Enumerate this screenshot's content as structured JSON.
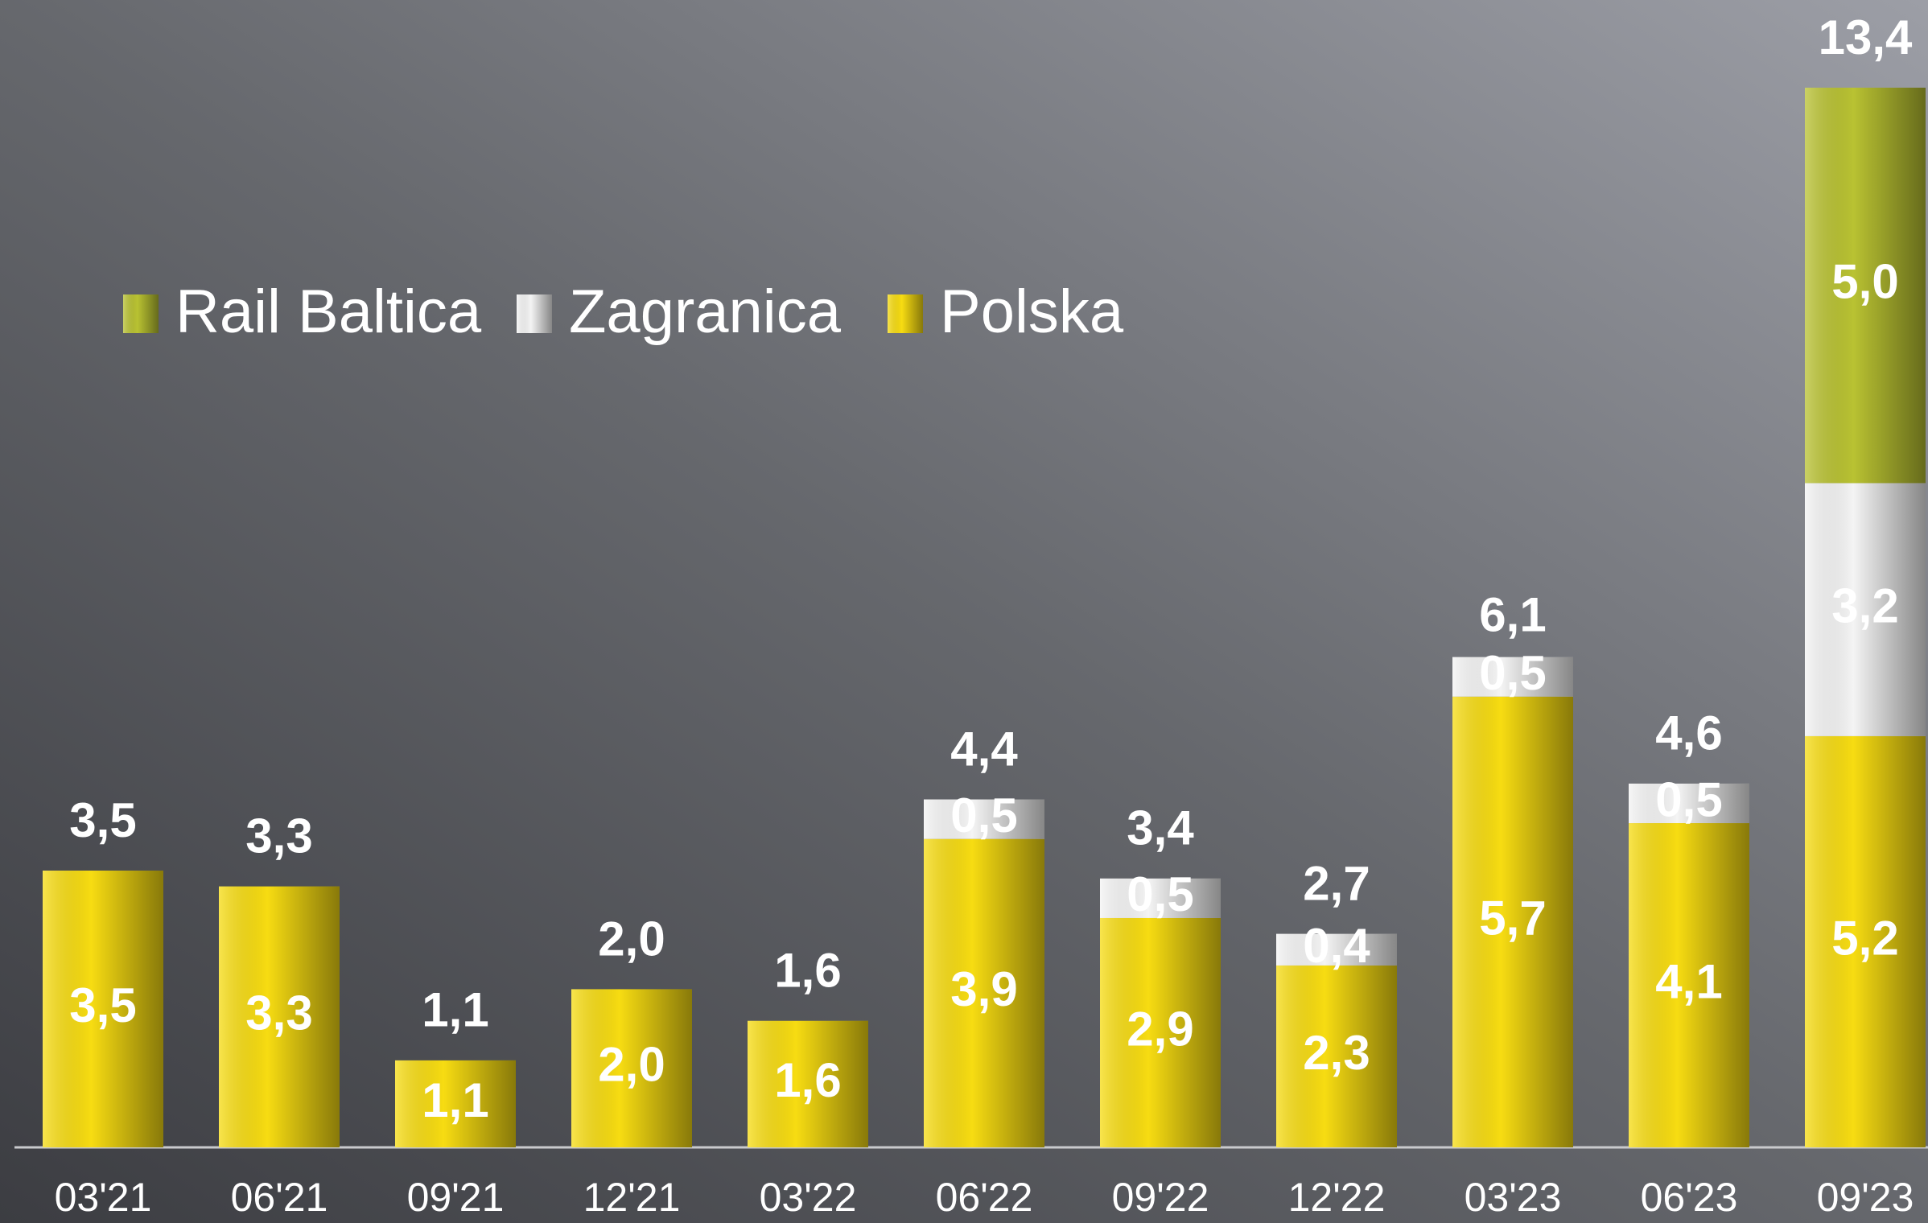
{
  "chart_data": {
    "type": "stacked_bar",
    "categories": [
      "03'21",
      "06'21",
      "09'21",
      "12'21",
      "03'22",
      "06'22",
      "09'22",
      "12'22",
      "03'23",
      "06'23",
      "09'23"
    ],
    "series": [
      {
        "name": "Rail Baltica",
        "color": "#b9c232",
        "values": [
          null,
          null,
          null,
          null,
          null,
          null,
          null,
          null,
          null,
          null,
          5.0
        ],
        "value_labels": [
          null,
          null,
          null,
          null,
          null,
          null,
          null,
          null,
          null,
          null,
          "5,0"
        ]
      },
      {
        "name": "Zagranica",
        "color": "#f4f4f4",
        "values": [
          null,
          null,
          null,
          null,
          null,
          0.5,
          0.5,
          0.4,
          0.5,
          0.5,
          3.2
        ],
        "value_labels": [
          null,
          null,
          null,
          null,
          null,
          "0,5",
          "0,5",
          "0,4",
          "0,5",
          "0,5",
          "3,2"
        ]
      },
      {
        "name": "Polska",
        "color": "#f7dc12",
        "values": [
          3.5,
          3.3,
          1.1,
          2.0,
          1.6,
          3.9,
          2.9,
          2.3,
          5.7,
          4.1,
          5.2
        ],
        "value_labels": [
          "3,5",
          "3,3",
          "1,1",
          "2,0",
          "1,6",
          "3,9",
          "2,9",
          "2,3",
          "5,7",
          "4,1",
          "5,2"
        ]
      }
    ],
    "totals": [
      3.5,
      3.3,
      1.1,
      2.0,
      1.6,
      4.4,
      3.4,
      2.7,
      6.1,
      4.6,
      13.4
    ],
    "total_labels": [
      "3,5",
      "3,3",
      "1,1",
      "2,0",
      "1,6",
      "4,4",
      "3,4",
      "2,7",
      "6,1",
      "4,6",
      "13,4"
    ],
    "ylim": [
      0,
      14
    ],
    "legend": "top-left"
  }
}
